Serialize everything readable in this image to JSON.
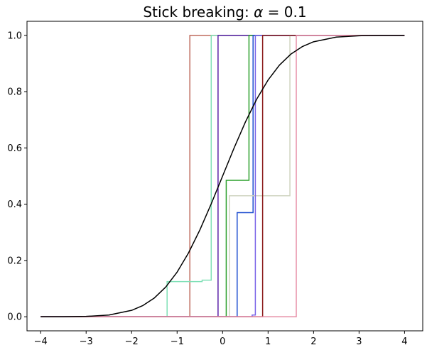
{
  "chart_data": {
    "type": "line",
    "title": "Stick breaking: ",
    "title_math": {
      "symbol": "α",
      "operator": " = ",
      "value": "0.1"
    },
    "xlabel": "",
    "ylabel": "",
    "xlim": [
      -4.3,
      4.4
    ],
    "ylim": [
      -0.05,
      1.05
    ],
    "grid": false,
    "xticks": [
      -4,
      -3,
      -2,
      -1,
      0,
      1,
      2,
      3,
      4
    ],
    "xtick_labels": [
      "−4",
      "−3",
      "−2",
      "−1",
      "0",
      "1",
      "2",
      "3",
      "4"
    ],
    "yticks": [
      0.0,
      0.2,
      0.4,
      0.6,
      0.8,
      1.0
    ],
    "ytick_labels": [
      "0.0",
      "0.2",
      "0.4",
      "0.6",
      "0.8",
      "1.0"
    ],
    "reference_cdf": {
      "color": "#000000",
      "description_visible": false,
      "x": [
        -4,
        -3.5,
        -3,
        -2.5,
        -2,
        -1.75,
        -1.5,
        -1.25,
        -1,
        -0.75,
        -0.5,
        -0.25,
        0,
        0.25,
        0.5,
        0.75,
        1,
        1.25,
        1.5,
        1.75,
        2,
        2.5,
        3,
        3.5,
        4
      ],
      "y": [
        3e-05,
        0.0002,
        0.0013,
        0.0062,
        0.0228,
        0.0401,
        0.0668,
        0.1056,
        0.1587,
        0.2266,
        0.3085,
        0.4013,
        0.5,
        0.5987,
        0.6915,
        0.7734,
        0.8413,
        0.8944,
        0.9332,
        0.9599,
        0.9772,
        0.9938,
        0.9987,
        0.9998,
        0.99997
      ]
    },
    "series": [
      {
        "color": "#bf6b5e",
        "steps": [
          [
            -4,
            0.0
          ],
          [
            -0.72,
            1.0
          ],
          [
            4,
            1.0
          ]
        ]
      },
      {
        "color": "#7fe0b6",
        "steps": [
          [
            -4,
            0.0
          ],
          [
            -1.22,
            0.125
          ],
          [
            -0.45,
            0.13
          ],
          [
            -0.25,
            1.0
          ],
          [
            4,
            1.0
          ]
        ]
      },
      {
        "color": "#5a1fa8",
        "steps": [
          [
            -4,
            0.0
          ],
          [
            -0.1,
            1.0
          ],
          [
            4,
            1.0
          ]
        ]
      },
      {
        "color": "#2ca02c",
        "steps": [
          [
            -4,
            0.0
          ],
          [
            0.08,
            0.485
          ],
          [
            0.58,
            1.0
          ],
          [
            4,
            1.0
          ]
        ]
      },
      {
        "color": "#1f4fd0",
        "steps": [
          [
            -4,
            0.0
          ],
          [
            0.32,
            0.37
          ],
          [
            0.67,
            1.0
          ],
          [
            4,
            1.0
          ]
        ]
      },
      {
        "color": "#cfd4c0",
        "steps": [
          [
            -4,
            0.0
          ],
          [
            0.15,
            0.43
          ],
          [
            1.48,
            1.0
          ],
          [
            4,
            1.0
          ]
        ]
      },
      {
        "color": "#7a64e8",
        "steps": [
          [
            -4,
            0.0
          ],
          [
            0.65,
            0.006
          ],
          [
            0.72,
            1.0
          ],
          [
            4,
            1.0
          ]
        ]
      },
      {
        "color": "#8b1a1a",
        "steps": [
          [
            -4,
            0.0
          ],
          [
            0.88,
            1.0
          ],
          [
            4,
            1.0
          ]
        ]
      },
      {
        "color": "#e890a8",
        "steps": [
          [
            -4,
            0.0
          ],
          [
            1.62,
            1.0
          ],
          [
            4,
            1.0
          ]
        ]
      }
    ]
  }
}
